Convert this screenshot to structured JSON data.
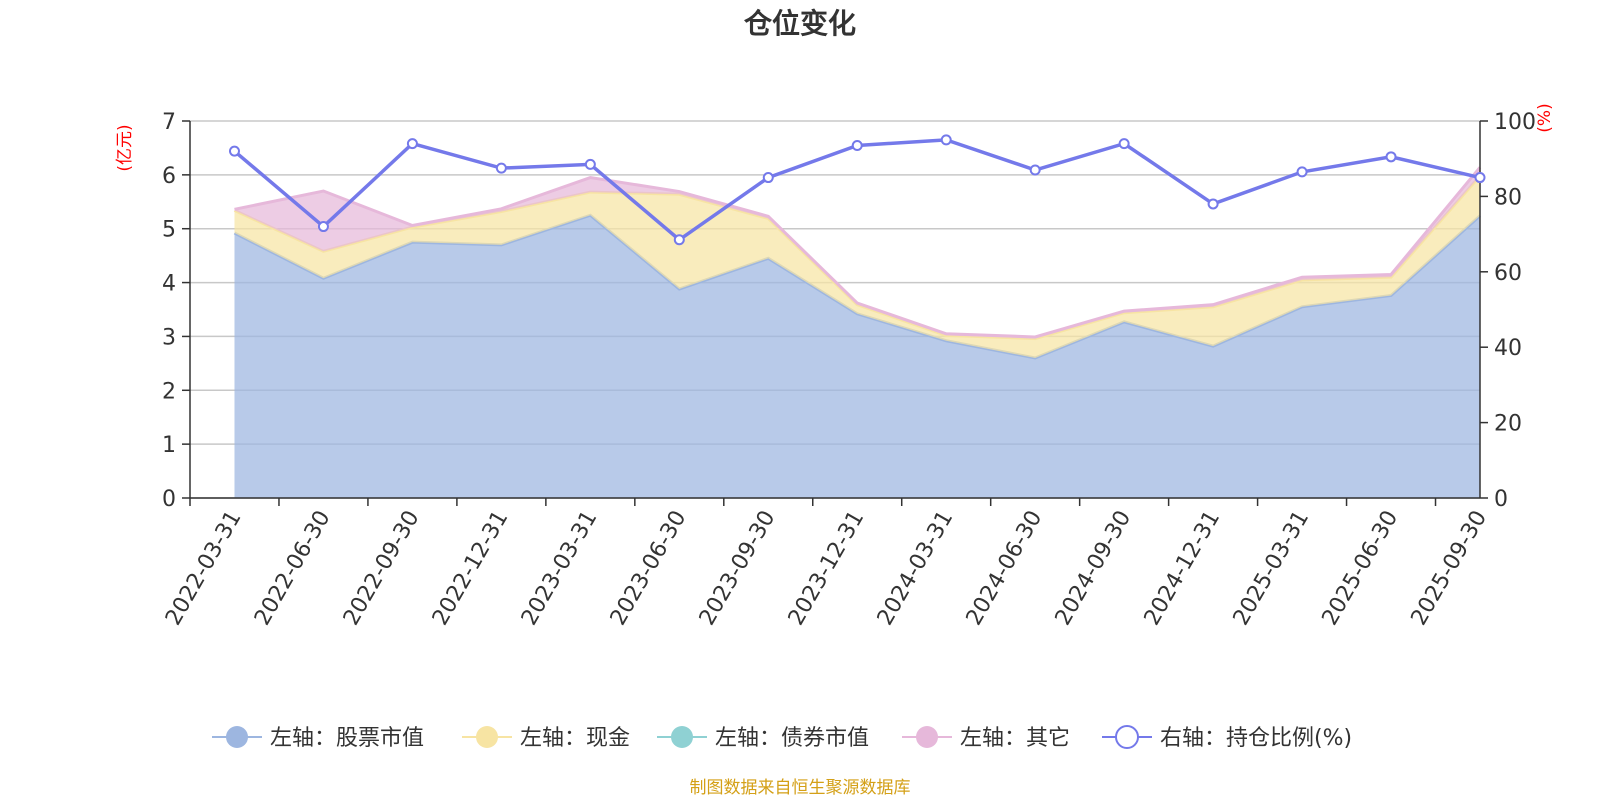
{
  "chart_data": {
    "type": "area",
    "title": "仓位变化",
    "left_axis_unit": "(亿元)",
    "right_axis_unit": "(%)",
    "left_ylim": [
      0,
      7
    ],
    "left_ticks": [
      "0",
      "1",
      "2",
      "3",
      "4",
      "5",
      "6",
      "7"
    ],
    "right_ylim": [
      0,
      100
    ],
    "right_ticks": [
      "0",
      "20",
      "40",
      "60",
      "80",
      "100"
    ],
    "categories": [
      "2022-03-31",
      "2022-06-30",
      "2022-09-30",
      "2022-12-31",
      "2023-03-31",
      "2023-06-30",
      "2023-09-30",
      "2023-12-31",
      "2024-03-31",
      "2024-06-30",
      "2024-09-30",
      "2024-12-31",
      "2025-03-31",
      "2025-06-30",
      "2025-09-30"
    ],
    "series": [
      {
        "name": "左轴：股票市值",
        "axis": "left",
        "kind": "stacked-area",
        "color": "#9db6e0",
        "values": [
          4.92,
          4.08,
          4.75,
          4.7,
          5.25,
          3.88,
          4.45,
          3.42,
          2.92,
          2.6,
          3.27,
          2.82,
          3.55,
          3.76,
          5.24
        ]
      },
      {
        "name": "左轴：现金",
        "axis": "left",
        "kind": "stacked-area",
        "color": "#f7e4a3",
        "values": [
          0.42,
          0.5,
          0.28,
          0.62,
          0.43,
          1.76,
          0.74,
          0.17,
          0.1,
          0.36,
          0.17,
          0.73,
          0.5,
          0.34,
          0.74
        ]
      },
      {
        "name": "左轴：债券市值",
        "axis": "left",
        "kind": "stacked-area",
        "color": "#8fd1d3",
        "values": [
          0,
          0,
          0,
          0,
          0,
          0,
          0,
          0,
          0,
          0,
          0,
          0,
          0,
          0,
          0
        ]
      },
      {
        "name": "左轴：其它",
        "axis": "left",
        "kind": "stacked-area",
        "color": "#e6b8da",
        "values": [
          0.02,
          1.12,
          0.03,
          0.05,
          0.27,
          0.05,
          0.04,
          0.03,
          0.03,
          0.03,
          0.03,
          0.04,
          0.05,
          0.05,
          0.16
        ]
      },
      {
        "name": "右轴：持仓比例(%)",
        "axis": "right",
        "kind": "line",
        "color": "#7479ea",
        "values": [
          92,
          72,
          94,
          87.5,
          88.5,
          68.5,
          85,
          93.5,
          95,
          87,
          94,
          78,
          86.5,
          90.5,
          85
        ]
      }
    ],
    "source_note": "制图数据来自恒生聚源数据库"
  }
}
